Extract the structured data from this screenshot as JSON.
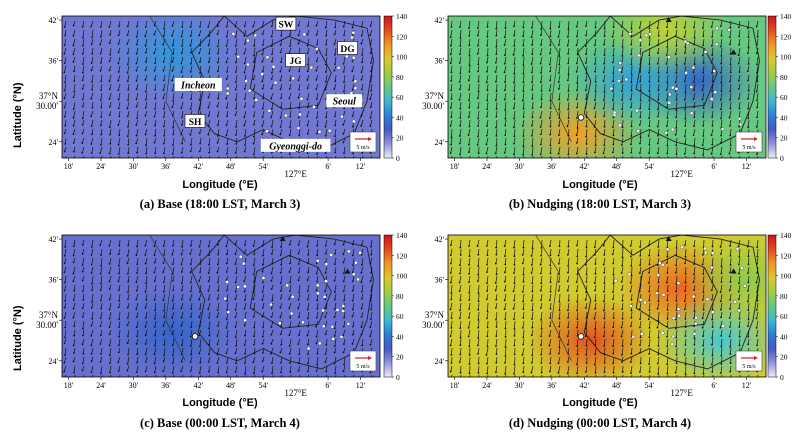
{
  "chart_data": [
    {
      "type": "heatmap",
      "caption": "(a) Base (18:00 LST, March 3)",
      "xlabel": "Longitude (°E)",
      "ylabel": "Latitude (°N)",
      "x_ticks": [
        "18'",
        "24'",
        "30'",
        "36'",
        "42'",
        "48'",
        "54'",
        "6'",
        "12'"
      ],
      "x_center_label": "127°E",
      "y_ticks": [
        "42'",
        "36'",
        "37°N\n30.00'",
        "24'"
      ],
      "colorbar": {
        "min": 0,
        "max": 140,
        "ticks": [
          0,
          20,
          40,
          60,
          80,
          100,
          120,
          140
        ]
      },
      "field_level": 20,
      "hotspots": [
        {
          "lon": 126.62,
          "lat": 37.62,
          "value": 48
        }
      ],
      "wind_scale": "5 m/s",
      "places": [
        {
          "name": "SW",
          "lon": 126.97,
          "lat": 37.69,
          "style": "box"
        },
        {
          "name": "DG",
          "lon": 127.16,
          "lat": 37.63,
          "style": "box"
        },
        {
          "name": "JG",
          "lon": 127.0,
          "lat": 37.6,
          "style": "box"
        },
        {
          "name": "Incheon",
          "lon": 126.7,
          "lat": 37.54,
          "style": "italic"
        },
        {
          "name": "Seoul",
          "lon": 127.15,
          "lat": 37.5,
          "style": "italic"
        },
        {
          "name": "SH",
          "lon": 126.69,
          "lat": 37.45,
          "style": "box"
        },
        {
          "name": "Gyeonggi-do",
          "lon": 127.0,
          "lat": 37.39,
          "style": "italic"
        }
      ]
    },
    {
      "type": "heatmap",
      "caption": "(b) Nudging (18:00 LST, March 3)",
      "xlabel": "Longitude (°E)",
      "ylabel": "",
      "x_ticks": [
        "18'",
        "24'",
        "30'",
        "36'",
        "42'",
        "48'",
        "54'",
        "6'",
        "12'"
      ],
      "x_center_label": "127°E",
      "y_ticks": [
        "42'",
        "36'",
        "37°N\n30.00'",
        "24'"
      ],
      "colorbar": {
        "min": 0,
        "max": 140,
        "ticks": [
          0,
          20,
          40,
          60,
          80,
          100,
          120,
          140
        ]
      },
      "field_level": 70,
      "hotspots": [
        {
          "lon": 126.68,
          "lat": 37.42,
          "value": 110
        },
        {
          "lon": 127.05,
          "lat": 37.55,
          "value": 35
        },
        {
          "lon": 126.85,
          "lat": 37.55,
          "value": 50
        },
        {
          "lon": 126.95,
          "lat": 37.68,
          "value": 90
        }
      ],
      "wind_scale": "5 m/s",
      "places": []
    },
    {
      "type": "heatmap",
      "caption": "(c) Base (00:00 LST, March 4)",
      "xlabel": "Longitude (°E)",
      "ylabel": "Latitude (°N)",
      "x_ticks": [
        "18'",
        "24'",
        "30'",
        "36'",
        "42'",
        "48'",
        "54'",
        "6'",
        "12'"
      ],
      "x_center_label": "127°E",
      "y_ticks": [
        "42'",
        "36'",
        "37°N\n30.00'",
        "24'"
      ],
      "colorbar": {
        "min": 0,
        "max": 140,
        "ticks": [
          0,
          20,
          40,
          60,
          80,
          100,
          120,
          140
        ]
      },
      "field_level": 22,
      "hotspots": [
        {
          "lon": 126.62,
          "lat": 37.47,
          "value": 35
        }
      ],
      "wind_scale": "5 m/s",
      "places": []
    },
    {
      "type": "heatmap",
      "caption": "(d) Nudging (00:00 LST, March 4)",
      "xlabel": "Longitude (°E)",
      "ylabel": "",
      "x_ticks": [
        "18'",
        "24'",
        "30'",
        "36'",
        "42'",
        "48'",
        "54'",
        "6'",
        "12'"
      ],
      "x_center_label": "127°E",
      "y_ticks": [
        "42'",
        "36'",
        "37°N\n30.00'",
        "24'"
      ],
      "colorbar": {
        "min": 0,
        "max": 140,
        "ticks": [
          0,
          20,
          40,
          60,
          80,
          100,
          120,
          140
        ]
      },
      "field_level": 95,
      "hotspots": [
        {
          "lon": 126.72,
          "lat": 37.45,
          "value": 125
        },
        {
          "lon": 127.0,
          "lat": 37.58,
          "value": 120
        },
        {
          "lon": 127.12,
          "lat": 37.45,
          "value": 60
        },
        {
          "lon": 127.2,
          "lat": 37.6,
          "value": 80
        }
      ],
      "wind_scale": "5 m/s",
      "places": []
    }
  ]
}
